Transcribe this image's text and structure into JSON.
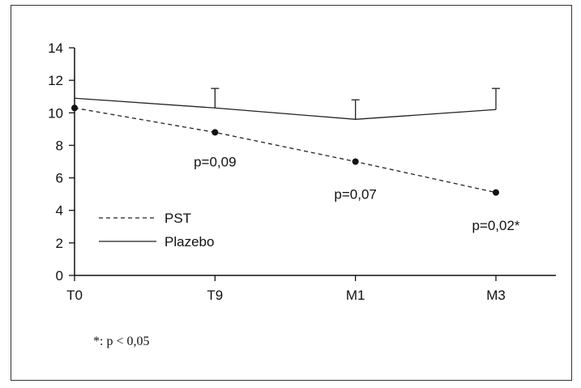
{
  "chart_data": {
    "type": "line",
    "categories": [
      "T0",
      "T9",
      "M1",
      "M3"
    ],
    "ylim": [
      0,
      14
    ],
    "yticks": [
      0,
      2,
      4,
      6,
      8,
      10,
      12,
      14
    ],
    "series": [
      {
        "name": "PST",
        "values": [
          10.3,
          8.8,
          7.0,
          5.1
        ],
        "style": "dashed",
        "markers": true
      },
      {
        "name": "Plazebo",
        "values": [
          10.9,
          10.3,
          9.6,
          10.2
        ],
        "style": "solid",
        "error_upper": [
          null,
          11.5,
          10.8,
          11.5
        ]
      }
    ],
    "annotations": [
      {
        "text": "p=0,09",
        "category": "T9",
        "y": 7.0
      },
      {
        "text": "p=0,07",
        "category": "M1",
        "y": 5.0
      },
      {
        "text": "p=0,02*",
        "category": "M3",
        "y": 3.1
      }
    ],
    "legend": "bottom-left",
    "footnote": "*: p < 0,05",
    "grid": false
  }
}
